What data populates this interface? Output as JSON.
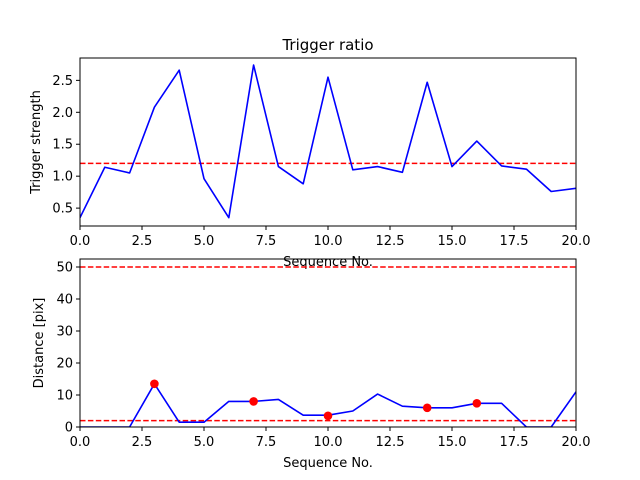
{
  "chart_data": [
    {
      "type": "line",
      "title": "Trigger ratio",
      "xlabel": "Sequence No.",
      "ylabel": "Trigger strength",
      "xlim": [
        0,
        20
      ],
      "ylim": [
        0.22,
        2.85
      ],
      "xticks": [
        0,
        2.5,
        5,
        7.5,
        10,
        12.5,
        15,
        17.5,
        20
      ],
      "xtick_labels": [
        "0.0",
        "2.5",
        "5.0",
        "7.5",
        "10.0",
        "12.5",
        "15.0",
        "17.5",
        "20.0"
      ],
      "yticks": [
        0.5,
        1.0,
        1.5,
        2.0,
        2.5
      ],
      "ytick_labels": [
        "0.5",
        "1.0",
        "1.5",
        "2.0",
        "2.5"
      ],
      "grid": false,
      "series": [
        {
          "color": "#0000ff",
          "x": [
            0,
            1,
            2,
            3,
            4,
            5,
            6,
            7,
            8,
            9,
            10,
            11,
            12,
            13,
            14,
            15,
            16,
            17,
            18,
            19,
            20
          ],
          "values": [
            0.35,
            1.14,
            1.05,
            2.08,
            2.66,
            0.96,
            0.35,
            2.74,
            1.15,
            0.88,
            2.55,
            1.1,
            1.15,
            1.06,
            2.47,
            1.15,
            1.55,
            1.16,
            1.11,
            0.76,
            0.81
          ]
        }
      ],
      "hlines": [
        {
          "y": 1.2,
          "color": "#ff0000",
          "style": "dashed"
        }
      ]
    },
    {
      "type": "line",
      "title": "",
      "xlabel": "Sequence No.",
      "ylabel": "Distance [pix]",
      "xlim": [
        0,
        20
      ],
      "ylim": [
        0,
        52.5
      ],
      "xticks": [
        0,
        2.5,
        5,
        7.5,
        10,
        12.5,
        15,
        17.5,
        20
      ],
      "xtick_labels": [
        "0.0",
        "2.5",
        "5.0",
        "7.5",
        "10.0",
        "12.5",
        "15.0",
        "17.5",
        "20.0"
      ],
      "yticks": [
        0,
        10,
        20,
        30,
        40,
        50
      ],
      "ytick_labels": [
        "0",
        "10",
        "20",
        "30",
        "40",
        "50"
      ],
      "grid": false,
      "series": [
        {
          "color": "#0000ff",
          "x": [
            0,
            1,
            2,
            3,
            4,
            5,
            6,
            7,
            8,
            9,
            10,
            11,
            12,
            13,
            14,
            15,
            16,
            17,
            18,
            19,
            20
          ],
          "values": [
            0,
            0,
            0,
            13.5,
            1.5,
            1.5,
            8,
            8,
            8.6,
            3.7,
            3.7,
            5,
            10.3,
            6.5,
            6,
            6,
            7.4,
            7.4,
            0,
            0,
            11
          ]
        },
        {
          "color": "#ff0000",
          "marker": "circle",
          "x": [
            3,
            7,
            10,
            14,
            16
          ],
          "values": [
            13.5,
            8,
            3.5,
            6,
            7.4
          ]
        }
      ],
      "hlines": [
        {
          "y": 50,
          "color": "#ff0000",
          "style": "dashed"
        },
        {
          "y": 2,
          "color": "#ff0000",
          "style": "dashed"
        }
      ]
    }
  ]
}
